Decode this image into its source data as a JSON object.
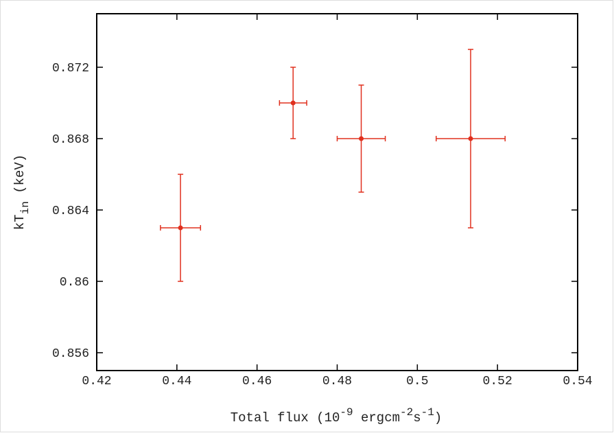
{
  "chart_data": {
    "type": "scatter",
    "x_label": [
      "Total flux (10",
      "-9",
      " ergcm",
      "-2",
      "s",
      "-1",
      ")"
    ],
    "y_label": [
      "kT",
      "in",
      " (keV)"
    ],
    "x": [
      0.4409,
      0.469,
      0.486,
      0.5133
    ],
    "x_err": [
      0.005,
      0.0034,
      0.006,
      0.0086
    ],
    "series": [
      {
        "color": "#e0301e",
        "values": [
          0.863,
          0.87,
          0.868,
          0.868
        ],
        "errors": [
          0.003,
          0.002,
          0.003,
          0.005
        ]
      }
    ],
    "xlim": [
      0.42,
      0.54
    ],
    "xticks": [
      0.42,
      0.44,
      0.46,
      0.48,
      0.5,
      0.52,
      0.54
    ],
    "ylim": [
      0.855,
      0.875
    ],
    "yticks": [
      0.856,
      0.86,
      0.864,
      0.868,
      0.872
    ],
    "grid": false
  }
}
